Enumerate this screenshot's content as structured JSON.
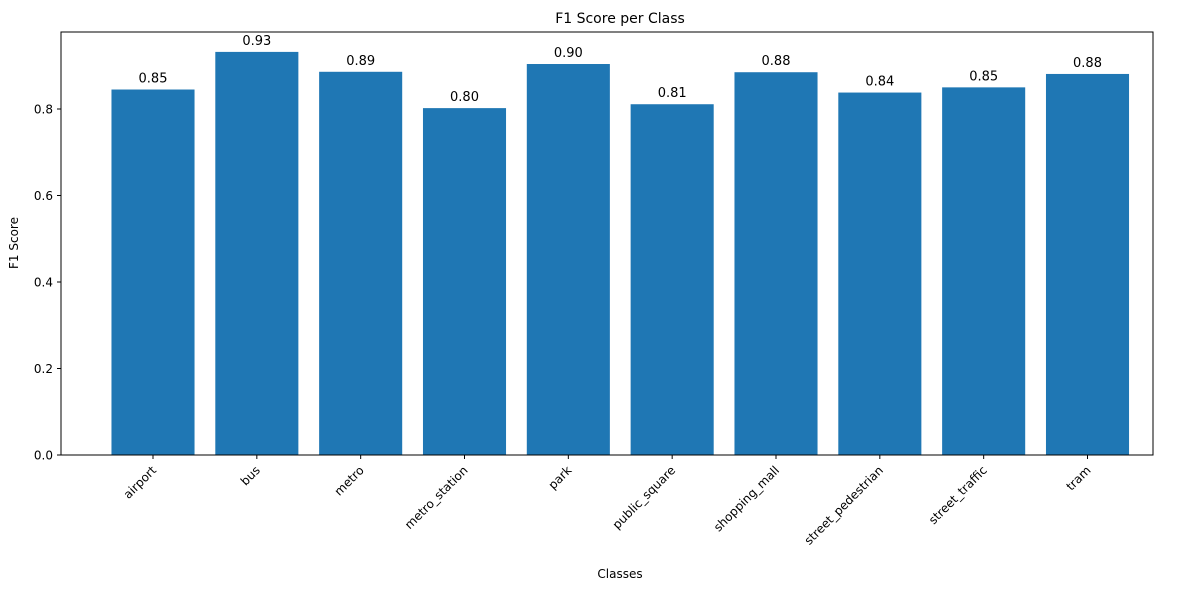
{
  "chart_data": {
    "type": "bar",
    "title": "F1 Score per Class",
    "xlabel": "Classes",
    "ylabel": "F1 Score",
    "categories": [
      "airport",
      "bus",
      "metro",
      "metro_station",
      "park",
      "public_square",
      "shopping_mall",
      "street_pedestrian",
      "street_traffic",
      "tram"
    ],
    "values": [
      0.845,
      0.932,
      0.886,
      0.802,
      0.904,
      0.811,
      0.885,
      0.838,
      0.85,
      0.881
    ],
    "value_labels": [
      "0.85",
      "0.93",
      "0.89",
      "0.80",
      "0.90",
      "0.81",
      "0.88",
      "0.84",
      "0.85",
      "0.88"
    ],
    "ylim": [
      0,
      0.978
    ],
    "yticks": [
      0.0,
      0.2,
      0.4,
      0.6,
      0.8
    ],
    "ytick_labels": [
      "0.0",
      "0.2",
      "0.4",
      "0.6",
      "0.8"
    ],
    "bar_color": "#1f77b4",
    "grid": false,
    "legend": "none"
  }
}
